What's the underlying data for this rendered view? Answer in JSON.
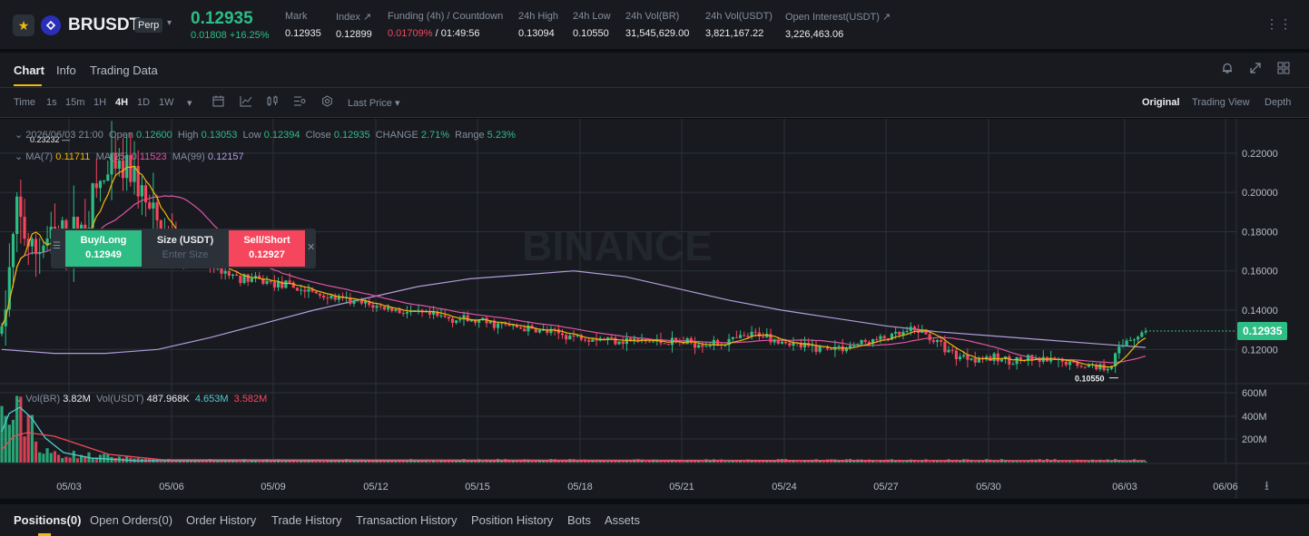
{
  "header": {
    "symbol": "BRUSDT",
    "contract_type": "Perp",
    "last_price": "0.12935",
    "price_change": "0.01808 +16.25%",
    "stats": [
      {
        "label": "Mark",
        "value": "0.12935"
      },
      {
        "label": "Index ↗",
        "value": "0.12899"
      },
      {
        "label": "Funding (4h) / Countdown",
        "value_funding": "0.01709%",
        "value_countdown": " / 01:49:56"
      },
      {
        "label": "24h High",
        "value": "0.13094"
      },
      {
        "label": "24h Low",
        "value": "0.10550"
      },
      {
        "label": "24h Vol(BR)",
        "value": "31,545,629.00"
      },
      {
        "label": "24h Vol(USDT)",
        "value": "3,821,167.22"
      },
      {
        "label": "Open Interest(USDT) ↗",
        "value": "3,226,463.06"
      }
    ],
    "colors": {
      "up": "#2ebd85",
      "down": "#f6465d",
      "accent": "#f0b90b"
    }
  },
  "tabs": [
    "Chart",
    "Info",
    "Trading Data"
  ],
  "toolbar": {
    "intervals": [
      "Time",
      "1s",
      "15m",
      "1H",
      "4H",
      "1D",
      "1W"
    ],
    "active_interval": "4H",
    "price_type": "Last Price ▾",
    "views": [
      "Original",
      "Trading View",
      "Depth"
    ],
    "active_view": "Original"
  },
  "legend": {
    "datetime": "2026/06/03 21:00",
    "open_label": "Open",
    "open": "0.12600",
    "high_label": "High",
    "high": "0.13053",
    "low_label": "Low",
    "low": "0.12394",
    "close_label": "Close",
    "close": "0.12935",
    "change_label": "CHANGE",
    "change": "2.71%",
    "range_label": "Range",
    "range": "5.23%",
    "ma7_label": "MA(7)",
    "ma7": "0.11711",
    "ma25_label": "MA(25)",
    "ma25": "0.11523",
    "ma99_label": "MA(99)",
    "ma99": "0.12157",
    "vol_label": "Vol(BR)",
    "vol_br": "3.82M",
    "vol_usdt_label": "Vol(USDT)",
    "vol_usdt": "487.968K",
    "vol_ma1": "4.653M",
    "vol_ma2": "3.582M"
  },
  "quick_order": {
    "buy_label": "Buy/Long",
    "buy_price": "0.12949",
    "size_label": "Size (USDT)",
    "size_placeholder": "Enter Size",
    "sell_label": "Sell/Short",
    "sell_price": "0.12927"
  },
  "watermark": "BINANCE",
  "chart_data": {
    "type": "candlestick",
    "interval": "4H",
    "y_ticks": [
      "0.22000",
      "0.20000",
      "0.18000",
      "0.16000",
      "0.14000",
      "0.12000"
    ],
    "ylim": [
      0.1035,
      0.2375
    ],
    "volume_ticks": [
      "600M",
      "400M",
      "200M"
    ],
    "x_ticks": [
      "05/03",
      "05/06",
      "05/09",
      "05/12",
      "05/15",
      "05/18",
      "05/21",
      "05/24",
      "05/27",
      "05/30",
      "06/03",
      "06/06"
    ],
    "max_label": "0.23232",
    "min_label": "0.10550",
    "current_price_label": "0.12935",
    "ma7_anchor_values": [
      0.128,
      0.172,
      0.176,
      0.168,
      0.176,
      0.195,
      0.209,
      0.205,
      0.182,
      0.17,
      0.163,
      0.158,
      0.155,
      0.152,
      0.148,
      0.144,
      0.141,
      0.138,
      0.136,
      0.133,
      0.13,
      0.128,
      0.127,
      0.126,
      0.124,
      0.124,
      0.126,
      0.124,
      0.121,
      0.12,
      0.119,
      0.121,
      0.123,
      0.125,
      0.126,
      0.122,
      0.117,
      0.116,
      0.115,
      0.114,
      0.112,
      0.113,
      0.118
    ],
    "ma25_anchor_values": [
      0.135,
      0.148,
      0.162,
      0.168,
      0.18,
      0.183,
      0.18,
      0.176,
      0.168,
      0.162,
      0.158,
      0.154,
      0.15,
      0.146,
      0.142,
      0.138,
      0.136,
      0.133,
      0.13,
      0.128,
      0.126,
      0.125,
      0.124,
      0.125,
      0.124,
      0.122,
      0.12,
      0.119,
      0.12,
      0.121,
      0.123,
      0.124,
      0.123,
      0.12,
      0.117,
      0.115,
      0.114,
      0.116
    ],
    "ma99_anchor_values": [
      0.12,
      0.118,
      0.118,
      0.12,
      0.126,
      0.133,
      0.14,
      0.146,
      0.152,
      0.156,
      0.158,
      0.16,
      0.157,
      0.151,
      0.145,
      0.14,
      0.136,
      0.132,
      0.129,
      0.127,
      0.125,
      0.123,
      0.121
    ]
  },
  "bottom_tabs": [
    "Positions(0)",
    "Open Orders(0)",
    "Order History",
    "Trade History",
    "Transaction History",
    "Position History",
    "Bots",
    "Assets"
  ]
}
